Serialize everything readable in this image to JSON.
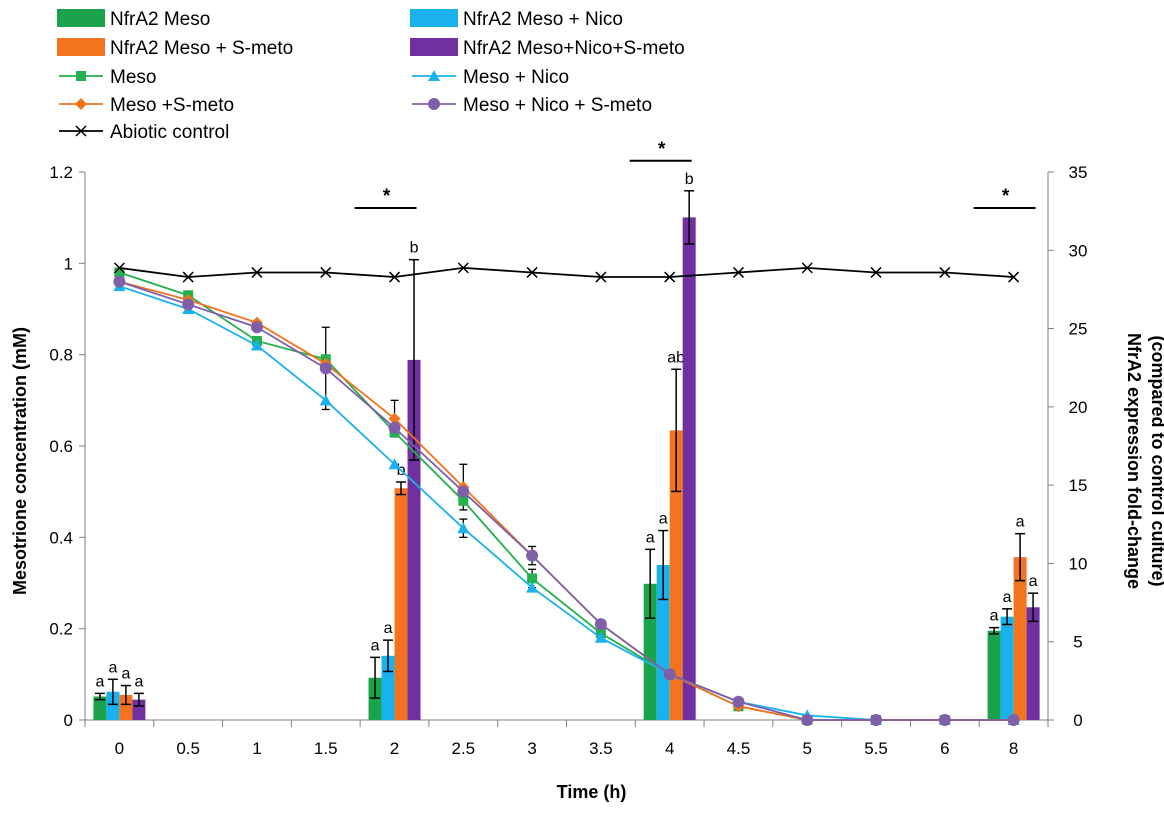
{
  "chart_data": {
    "type": "bar+line",
    "x_categories": [
      "0",
      "0.5",
      "1",
      "1.5",
      "2",
      "2.5",
      "3",
      "3.5",
      "4",
      "4.5",
      "5",
      "5.5",
      "6",
      "8"
    ],
    "xlabel": "Time (h)",
    "ylabel_left": "Mesotrione concentration (mM)",
    "ylabel_right": "NfrA2 expression fold-change",
    "ylabel_right_sub": "(compared to control culture)",
    "y_left_range": [
      0,
      1.2
    ],
    "y_left_ticks": [
      "0",
      "0.2",
      "0.4",
      "0.6",
      "0.8",
      "1",
      "1.2"
    ],
    "y_right_range": [
      0,
      35
    ],
    "y_right_ticks": [
      "0",
      "5",
      "10",
      "15",
      "20",
      "25",
      "30",
      "35"
    ],
    "legend": [
      {
        "label": "NfrA2 Meso",
        "kind": "bar",
        "color": "#1aa34a"
      },
      {
        "label": "NfrA2 Meso + Nico",
        "kind": "bar",
        "color": "#1ab2ee"
      },
      {
        "label": "NfrA2 Meso + S-meto",
        "kind": "bar",
        "color": "#f4731f"
      },
      {
        "label": "NfrA2 Meso+Nico+S-meto",
        "kind": "bar",
        "color": "#7030a0"
      },
      {
        "label": "Meso",
        "kind": "line",
        "marker": "square",
        "color": "#22b14c"
      },
      {
        "label": "Meso + Nico",
        "kind": "line",
        "marker": "triangle",
        "color": "#1ab2ee"
      },
      {
        "label": "Meso +S-meto",
        "kind": "line",
        "marker": "diamond",
        "color": "#f4731f"
      },
      {
        "label": "Meso + Nico + S-meto",
        "kind": "line",
        "marker": "circle",
        "color": "#7f5fa8"
      },
      {
        "label": "Abiotic control",
        "kind": "line",
        "marker": "x",
        "color": "#000000"
      }
    ],
    "bar_series": [
      {
        "name": "NfrA2 Meso",
        "color": "#1aa34a",
        "points": [
          {
            "x": "0",
            "value": 1.5,
            "err": 0.2,
            "letter": "a"
          },
          {
            "x": "2",
            "value": 2.7,
            "err": 1.3,
            "letter": "a"
          },
          {
            "x": "4",
            "value": 8.7,
            "err": 2.2,
            "letter": "a"
          },
          {
            "x": "8",
            "value": 5.7,
            "err": 0.2,
            "letter": "a"
          }
        ]
      },
      {
        "name": "NfrA2 Meso + Nico",
        "color": "#1ab2ee",
        "points": [
          {
            "x": "0",
            "value": 1.8,
            "err": 0.8,
            "letter": "a"
          },
          {
            "x": "2",
            "value": 4.1,
            "err": 1.0,
            "letter": "a"
          },
          {
            "x": "4",
            "value": 9.9,
            "err": 2.2,
            "letter": "a"
          },
          {
            "x": "8",
            "value": 6.6,
            "err": 0.5,
            "letter": "a"
          }
        ]
      },
      {
        "name": "NfrA2 Meso + S-meto",
        "color": "#f4731f",
        "points": [
          {
            "x": "0",
            "value": 1.6,
            "err": 0.6,
            "letter": "a"
          },
          {
            "x": "2",
            "value": 14.8,
            "err": 0.4,
            "letter": "b"
          },
          {
            "x": "4",
            "value": 18.5,
            "err": 3.9,
            "letter": "ab"
          },
          {
            "x": "8",
            "value": 10.4,
            "err": 1.5,
            "letter": "a"
          }
        ]
      },
      {
        "name": "NfrA2 Meso+Nico+S-meto",
        "color": "#7030a0",
        "points": [
          {
            "x": "0",
            "value": 1.3,
            "err": 0.4,
            "letter": "a"
          },
          {
            "x": "2",
            "value": 23.0,
            "err": 6.4,
            "letter": "b"
          },
          {
            "x": "4",
            "value": 32.1,
            "err": 1.7,
            "letter": "b"
          },
          {
            "x": "8",
            "value": 7.2,
            "err": 0.9,
            "letter": "a"
          }
        ]
      }
    ],
    "line_series": [
      {
        "name": "Meso",
        "color": "#22b14c",
        "marker": "square",
        "values": [
          0.98,
          0.93,
          0.83,
          0.79,
          0.63,
          0.48,
          0.31,
          0.19,
          0.1,
          0.03,
          0.0,
          0.0,
          0.0,
          0.0
        ]
      },
      {
        "name": "Meso + Nico",
        "color": "#1ab2ee",
        "marker": "triangle",
        "values": [
          0.95,
          0.9,
          0.82,
          0.7,
          0.56,
          0.42,
          0.29,
          0.18,
          0.1,
          0.04,
          0.01,
          0.0,
          0.0,
          0.0
        ]
      },
      {
        "name": "Meso +S-meto",
        "color": "#f4731f",
        "marker": "diamond",
        "values": [
          0.96,
          0.92,
          0.87,
          0.78,
          0.66,
          0.51,
          0.36,
          0.21,
          0.1,
          0.03,
          0.0,
          0.0,
          0.0,
          0.0
        ]
      },
      {
        "name": "Meso + Nico + S-meto",
        "color": "#7f5fa8",
        "marker": "circle",
        "values": [
          0.96,
          0.91,
          0.86,
          0.77,
          0.64,
          0.5,
          0.36,
          0.21,
          0.1,
          0.04,
          0.0,
          0.0,
          0.0,
          0.0
        ]
      },
      {
        "name": "Abiotic control",
        "color": "#000000",
        "marker": "x",
        "values": [
          0.99,
          0.97,
          0.98,
          0.98,
          0.97,
          0.99,
          0.98,
          0.97,
          0.97,
          0.98,
          0.99,
          0.98,
          0.98,
          0.97
        ]
      }
    ],
    "line_errors": [
      {
        "series": "Meso + Nico + S-meto",
        "x": "1.5",
        "err": 0.09
      },
      {
        "series": "Meso +S-meto",
        "x": "2",
        "err": 0.04
      },
      {
        "series": "Meso +S-meto",
        "x": "2.5",
        "err": 0.05
      },
      {
        "series": "Meso + Nico",
        "x": "2.5",
        "err": 0.02
      },
      {
        "series": "Meso +S-meto",
        "x": "3",
        "err": 0.02
      },
      {
        "series": "Meso",
        "x": "3",
        "err": 0.02
      }
    ],
    "significance": [
      {
        "x": "2",
        "label": "*"
      },
      {
        "x": "4",
        "label": "*"
      },
      {
        "x": "8",
        "label": "*"
      }
    ]
  }
}
